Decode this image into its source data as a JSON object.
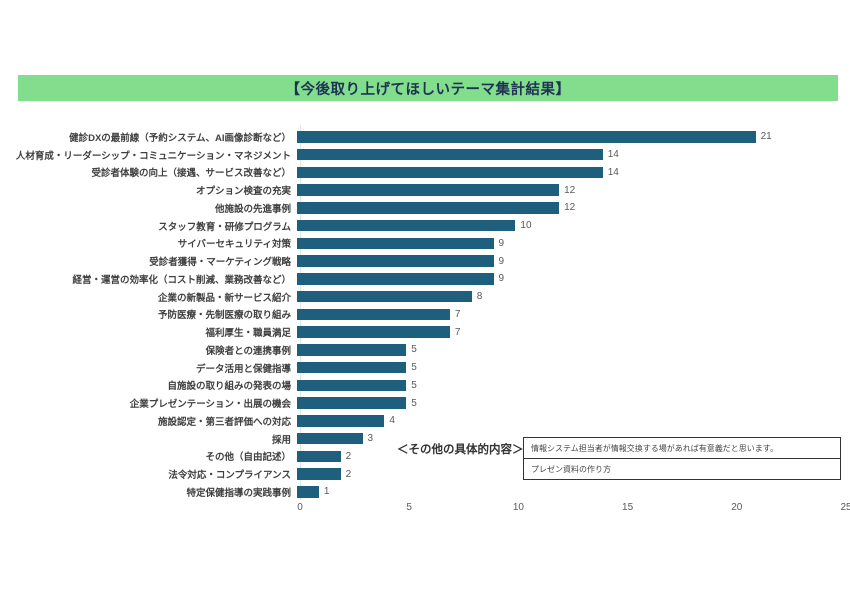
{
  "banner": {
    "title": "【今後取り上げてほしいテーマ集計結果】"
  },
  "colors": {
    "banner_bg": "#82dd8d",
    "banner_text": "#203354",
    "bar": "#1e5f7d",
    "value_label": "#595959",
    "axis_label": "#595959",
    "category_label": "#404040"
  },
  "chart_data": {
    "type": "bar",
    "orientation": "horizontal",
    "title": "【今後取り上げてほしいテーマ集計結果】",
    "categories": [
      "健診DXの最前線（予約システム、AI画像診断など）",
      "人材育成・リーダーシップ・コミュニケーション・マネジメント",
      "受診者体験の向上（接遇、サービス改善など）",
      "オプション検査の充実",
      "他施設の先進事例",
      "スタッフ教育・研修プログラム",
      "サイバーセキュリティ対策",
      "受診者獲得・マーケティング戦略",
      "経営・運営の効率化（コスト削減、業務改善など）",
      "企業の新製品・新サービス紹介",
      "予防医療・先制医療の取り組み",
      "福利厚生・職員満足",
      "保険者との連携事例",
      "データ活用と保健指導",
      "自施設の取り組みの発表の場",
      "企業プレゼンテーション・出展の機会",
      "施設認定・第三者評価への対応",
      "採用",
      "その他（自由記述）",
      "法令対応・コンプライアンス",
      "特定保健指導の実践事例"
    ],
    "values": [
      21,
      14,
      14,
      12,
      12,
      10,
      9,
      9,
      9,
      8,
      7,
      7,
      5,
      5,
      5,
      5,
      4,
      3,
      2,
      2,
      1
    ],
    "xlabel": "",
    "ylabel": "",
    "xlim": [
      0,
      25
    ],
    "x_ticks": [
      0,
      5,
      10,
      15,
      20,
      25
    ],
    "grid": false,
    "value_labels": true,
    "legend": false
  },
  "annotation": {
    "label": "＜その他の具体的内容＞",
    "box_items": [
      "情報システム担当者が情報交換する場があれば有意義だと思います。",
      "プレゼン資料の作り方"
    ]
  }
}
